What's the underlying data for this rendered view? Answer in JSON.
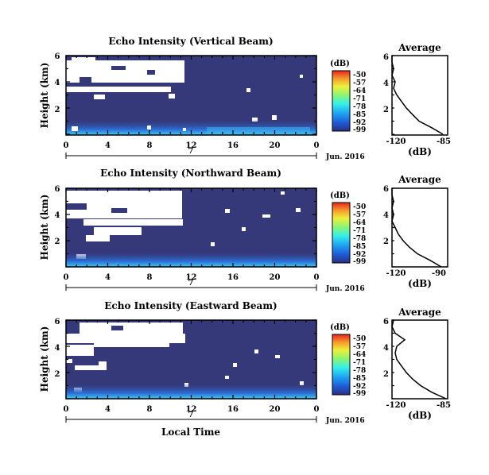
{
  "colorbar": {
    "unit": "(dB)",
    "ticks": [
      "-50",
      "-57",
      "-64",
      "-71",
      "-78",
      "-85",
      "-92",
      "-99"
    ],
    "stops": [
      "#2b2f80",
      "#1f5bd6",
      "#1ea6f2",
      "#35f0e8",
      "#8ff570",
      "#eef03b",
      "#f59a2a",
      "#e8231f"
    ]
  },
  "colors": {
    "background": "#35397a",
    "echo_bright": "#40b8f0",
    "missing": "#ffffff",
    "axis": "#000000"
  },
  "x_axis_label": "Local Time",
  "date_label": "Jun. 2016",
  "day_label": "7",
  "chart_data": [
    {
      "type": "heatmap",
      "title": "Echo Intensity (Vertical Beam)",
      "ylabel": "Height (km)",
      "xticks": [
        "0",
        "4",
        "8",
        "12",
        "16",
        "20",
        "0"
      ],
      "yticks": [
        "2",
        "4",
        "6"
      ],
      "xlim": [
        0,
        24
      ],
      "ylim": [
        0,
        6
      ],
      "missing_below_6km_until_hour": 11.5,
      "missing_regions": [
        [
          0,
          11.5,
          3.0,
          5.8
        ],
        [
          0,
          9.5,
          3.1,
          3.5
        ]
      ],
      "profile": {
        "title": "Average",
        "xlabel": "(dB)",
        "xticks": [
          "-120",
          "-85"
        ],
        "yticks": [
          "2",
          "4",
          "6"
        ],
        "xlim": [
          -120,
          -85
        ],
        "height": [
          0,
          0.5,
          1.0,
          1.5,
          2.0,
          2.5,
          3.0,
          3.5,
          4.0,
          4.5,
          5.0,
          5.5,
          6.0
        ],
        "db": [
          -88,
          -95,
          -103,
          -107,
          -111,
          -114,
          -117,
          -119,
          -118,
          -120,
          -119,
          -120,
          -120
        ]
      }
    },
    {
      "type": "heatmap",
      "title": "Echo Intensity (Northward Beam)",
      "ylabel": "Height (km)",
      "xticks": [
        "0",
        "4",
        "8",
        "12",
        "16",
        "20",
        "0"
      ],
      "yticks": [
        "2",
        "4",
        "6"
      ],
      "xlim": [
        0,
        24
      ],
      "ylim": [
        0,
        6
      ],
      "missing_regions": [
        [
          0,
          11.3,
          2.3,
          5.9
        ],
        [
          1.5,
          11.0,
          1.2,
          2.3
        ]
      ],
      "profile": {
        "title": "Average",
        "xlabel": "(dB)",
        "xticks": [
          "-120",
          "-90"
        ],
        "yticks": [
          "2",
          "4",
          "6"
        ],
        "xlim": [
          -120,
          -85
        ],
        "height": [
          0,
          0.5,
          1.0,
          1.5,
          2.0,
          2.5,
          3.0,
          3.5,
          4.0,
          4.5,
          5.0,
          5.5,
          6.0
        ],
        "db": [
          -89,
          -96,
          -104,
          -109,
          -113,
          -116,
          -118,
          -120,
          -119,
          -120,
          -119,
          -120,
          -120
        ]
      }
    },
    {
      "type": "heatmap",
      "title": "Echo Intensity (Eastward Beam)",
      "ylabel": "Height (km)",
      "xticks": [
        "0",
        "4",
        "8",
        "12",
        "16",
        "20",
        "0"
      ],
      "yticks": [
        "2",
        "4",
        "6"
      ],
      "xlim": [
        0,
        24
      ],
      "ylim": [
        0,
        6
      ],
      "missing_regions": [
        [
          0,
          11.3,
          3.0,
          5.9
        ],
        [
          1.0,
          7.0,
          2.2,
          3.0
        ]
      ],
      "profile": {
        "title": "Average",
        "xlabel": "(dB)",
        "xticks": [
          "-120",
          "-85"
        ],
        "yticks": [
          "2",
          "4",
          "6"
        ],
        "xlim": [
          -120,
          -85
        ],
        "height": [
          0,
          0.5,
          1.0,
          1.5,
          2.0,
          2.5,
          3.0,
          3.5,
          4.0,
          4.5,
          5.0,
          5.5,
          6.0
        ],
        "db": [
          -86,
          -95,
          -102,
          -107,
          -111,
          -114,
          -117,
          -118,
          -117,
          -112,
          -118,
          -120,
          -119
        ]
      }
    }
  ]
}
